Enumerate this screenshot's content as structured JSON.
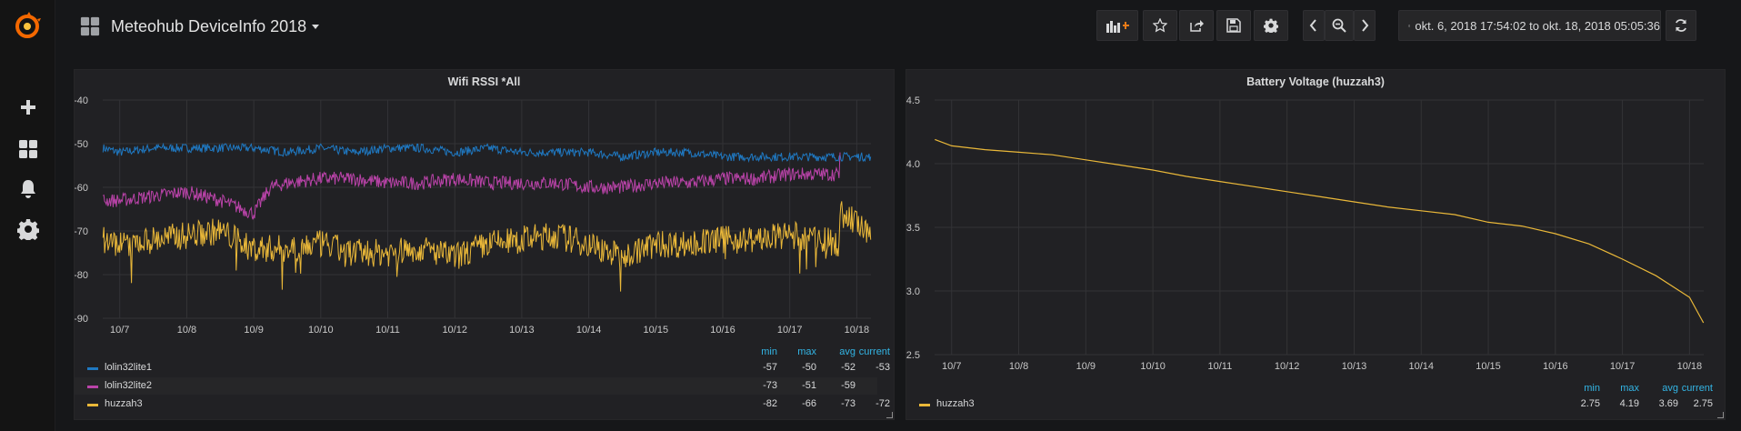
{
  "dashboard": {
    "title": "Meteohub DeviceInfo 2018"
  },
  "sidebar": {
    "icons": [
      "grafana-logo-icon",
      "plus-icon",
      "dashboards-icon",
      "bell-icon",
      "gear-icon"
    ]
  },
  "toolbar": {
    "icons": [
      "add-panel-icon",
      "star-icon",
      "share-icon",
      "save-icon",
      "settings-icon",
      "chevron-left-icon",
      "zoom-out-icon",
      "chevron-right-icon",
      "clock-icon",
      "refresh-icon"
    ],
    "time_range": "okt. 6, 2018 17:54:02 to okt. 18, 2018 05:05:36"
  },
  "colors": {
    "lolin32lite1": "#1f78c1",
    "lolin32lite2": "#ba43a9",
    "huzzah3": "#eab839",
    "highlight": "#33b5e5"
  },
  "panels": [
    {
      "title": "Wifi RSSI *All",
      "legend": {
        "columns": [
          "min",
          "max",
          "avg",
          "current"
        ],
        "rows": [
          {
            "name": "lolin32lite1",
            "min": "-57",
            "max": "-50",
            "avg": "-52",
            "current": "-53"
          },
          {
            "name": "lolin32lite2",
            "min": "-73",
            "max": "-51",
            "avg": "-59",
            "current": ""
          },
          {
            "name": "huzzah3",
            "min": "-82",
            "max": "-66",
            "avg": "-73",
            "current": "-72"
          }
        ]
      }
    },
    {
      "title": "Battery Voltage (huzzah3)",
      "legend": {
        "columns": [
          "min",
          "max",
          "avg",
          "current"
        ],
        "rows": [
          {
            "name": "huzzah3",
            "min": "2.75",
            "max": "4.19",
            "avg": "3.69",
            "current": "2.75"
          }
        ]
      }
    }
  ],
  "chart_data": [
    {
      "type": "line",
      "title": "Wifi RSSI *All",
      "xlabel": "",
      "ylabel": "",
      "x_ticks": [
        "10/7",
        "10/8",
        "10/9",
        "10/10",
        "10/11",
        "10/12",
        "10/13",
        "10/14",
        "10/15",
        "10/16",
        "10/17",
        "10/18"
      ],
      "y_ticks": [
        "-40",
        "-50",
        "-60",
        "-70",
        "-80",
        "-90"
      ],
      "xlim": [
        "2018-10-06 17:54",
        "2018-10-18 05:05"
      ],
      "ylim": [
        -90,
        -40
      ],
      "grid": true,
      "legend_position": "bottom",
      "series": [
        {
          "name": "lolin32lite1",
          "x": [
            "10/6 18:00",
            "10/7 00:00",
            "10/7 12:00",
            "10/8 00:00",
            "10/8 12:00",
            "10/9 00:00",
            "10/9 12:00",
            "10/10 00:00",
            "10/10 12:00",
            "10/11 00:00",
            "10/11 12:00",
            "10/12 00:00",
            "10/12 12:00",
            "10/13 00:00",
            "10/13 12:00",
            "10/14 00:00",
            "10/14 12:00",
            "10/15 00:00",
            "10/15 12:00",
            "10/16 00:00",
            "10/16 12:00",
            "10/17 00:00",
            "10/17 12:00",
            "10/18 00:00",
            "10/18 05:00"
          ],
          "y": [
            -51,
            -52,
            -51,
            -51,
            -51,
            -51,
            -52,
            -51,
            -52,
            -51,
            -51,
            -52,
            -51,
            -52,
            -52,
            -52,
            -53,
            -52,
            -52,
            -53,
            -53,
            -53,
            -53,
            -53,
            -53
          ]
        },
        {
          "name": "lolin32lite2",
          "x": [
            "10/6 18:00",
            "10/7 00:00",
            "10/7 12:00",
            "10/8 00:00",
            "10/8 12:00",
            "10/9 00:00",
            "10/9 06:00",
            "10/9 12:00",
            "10/10 00:00",
            "10/10 12:00",
            "10/11 00:00",
            "10/11 12:00",
            "10/12 00:00",
            "10/12 12:00",
            "10/13 00:00",
            "10/13 12:00",
            "10/14 00:00",
            "10/14 12:00",
            "10/15 00:00",
            "10/15 12:00",
            "10/16 00:00",
            "10/16 12:00",
            "10/17 00:00",
            "10/17 12:00",
            "10/17 17:00",
            "10/17 18:00"
          ],
          "y": [
            -63,
            -63,
            -62,
            -61,
            -63,
            -66,
            -60,
            -59,
            -58,
            -58,
            -59,
            -59,
            -58,
            -59,
            -59,
            -59,
            -60,
            -60,
            -59,
            -59,
            -58,
            -58,
            -57,
            -57,
            -57,
            -52
          ]
        },
        {
          "name": "huzzah3",
          "x": [
            "10/6 18:00",
            "10/7 00:00",
            "10/7 12:00",
            "10/8 00:00",
            "10/8 12:00",
            "10/9 00:00",
            "10/9 12:00",
            "10/10 00:00",
            "10/10 12:00",
            "10/11 00:00",
            "10/11 12:00",
            "10/12 00:00",
            "10/12 12:00",
            "10/13 00:00",
            "10/13 12:00",
            "10/14 00:00",
            "10/14 12:00",
            "10/15 00:00",
            "10/15 12:00",
            "10/16 00:00",
            "10/16 12:00",
            "10/17 00:00",
            "10/17 12:00",
            "10/17 17:00",
            "10/17 18:00",
            "10/18 00:00",
            "10/18 05:00"
          ],
          "y": [
            -72,
            -73,
            -72,
            -71,
            -70,
            -74,
            -74,
            -73,
            -75,
            -75,
            -74,
            -76,
            -73,
            -72,
            -71,
            -73,
            -76,
            -73,
            -73,
            -72,
            -72,
            -71,
            -72,
            -73,
            -66,
            -68,
            -72
          ]
        }
      ]
    },
    {
      "type": "line",
      "title": "Battery Voltage (huzzah3)",
      "xlabel": "",
      "ylabel": "",
      "x_ticks": [
        "10/7",
        "10/8",
        "10/9",
        "10/10",
        "10/11",
        "10/12",
        "10/13",
        "10/14",
        "10/15",
        "10/16",
        "10/17",
        "10/18"
      ],
      "y_ticks": [
        "4.5",
        "4.0",
        "3.5",
        "3.0",
        "2.5"
      ],
      "xlim": [
        "2018-10-06 17:54",
        "2018-10-18 05:05"
      ],
      "ylim": [
        2.5,
        4.5
      ],
      "grid": true,
      "legend_position": "bottom",
      "series": [
        {
          "name": "huzzah3",
          "x": [
            "10/6 18:00",
            "10/7 00:00",
            "10/7 12:00",
            "10/8 00:00",
            "10/8 12:00",
            "10/9 00:00",
            "10/9 12:00",
            "10/10 00:00",
            "10/10 12:00",
            "10/11 00:00",
            "10/11 12:00",
            "10/12 00:00",
            "10/12 12:00",
            "10/13 00:00",
            "10/13 12:00",
            "10/14 00:00",
            "10/14 12:00",
            "10/15 00:00",
            "10/15 12:00",
            "10/16 00:00",
            "10/16 12:00",
            "10/17 00:00",
            "10/17 12:00",
            "10/18 00:00",
            "10/18 05:00"
          ],
          "y": [
            4.19,
            4.14,
            4.11,
            4.09,
            4.07,
            4.03,
            3.99,
            3.95,
            3.9,
            3.86,
            3.82,
            3.78,
            3.74,
            3.7,
            3.66,
            3.63,
            3.6,
            3.54,
            3.51,
            3.45,
            3.37,
            3.25,
            3.12,
            2.95,
            2.75
          ]
        }
      ]
    }
  ]
}
